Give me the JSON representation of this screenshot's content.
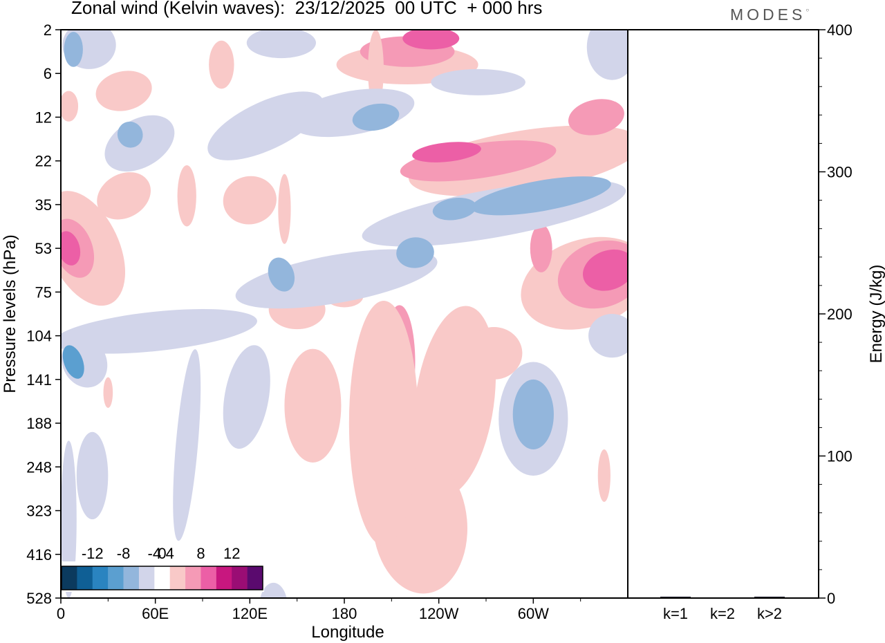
{
  "header": {
    "title": "Zonal wind (Kelvin waves):  23/12/2025  00 UTC  + 000 hrs",
    "brand": "MODES"
  },
  "chart_data": [
    {
      "type": "heatmap",
      "title": "Zonal wind (Kelvin waves):  23/12/2025  00 UTC  + 000 hrs",
      "xlabel": "Longitude",
      "ylabel": "Pressure levels (hPa)",
      "x_ticks": [
        "0",
        "60E",
        "120E",
        "180",
        "120W",
        "60W"
      ],
      "x_tick_values": [
        0,
        60,
        120,
        180,
        240,
        300
      ],
      "xlim": [
        0,
        360
      ],
      "y_ticks": [
        "2",
        "6",
        "12",
        "22",
        "35",
        "53",
        "75",
        "104",
        "141",
        "188",
        "248",
        "323",
        "416",
        "528"
      ],
      "y_scale": "level-index (inverted, 2 hPa at top)",
      "colorbar": {
        "tick_labels": [
          "-12",
          "-8",
          "-4",
          "0",
          "4",
          "8",
          "12"
        ],
        "levels": [
          -14,
          -12,
          -10,
          -8,
          -6,
          -4,
          -2,
          2,
          4,
          6,
          8,
          10,
          12,
          14
        ],
        "colors": [
          "#0b3a5e",
          "#0f5f95",
          "#2a84c0",
          "#5b9fd0",
          "#93b6dc",
          "#d2d5ea",
          "#ffffff",
          "#f9c9c8",
          "#f59ab6",
          "#ec5fa6",
          "#c8177f",
          "#9a0d74",
          "#5a0a6e"
        ]
      },
      "regions": [
        {
          "cat": "pos",
          "level": 1,
          "x": 102,
          "y": 0.8,
          "rx": 8,
          "ry": 0.55,
          "rot": 0
        },
        {
          "cat": "pos",
          "level": 1,
          "x": 40,
          "y": 1.4,
          "rx": 18,
          "ry": 0.45,
          "rot": -12
        },
        {
          "cat": "pos",
          "level": 1,
          "x": 5,
          "y": 1.75,
          "rx": 6,
          "ry": 0.35,
          "rot": 0
        },
        {
          "cat": "pos",
          "level": 1,
          "x": 40,
          "y": 3.8,
          "rx": 18,
          "ry": 0.5,
          "rot": -30
        },
        {
          "cat": "pos",
          "level": 1,
          "x": 80,
          "y": 3.8,
          "rx": 6,
          "ry": 0.7,
          "rot": 0
        },
        {
          "cat": "pos",
          "level": 1,
          "x": 120,
          "y": 3.9,
          "rx": 17,
          "ry": 0.55,
          "rot": -10
        },
        {
          "cat": "pos",
          "level": 1,
          "x": 142,
          "y": 4.1,
          "rx": 4,
          "ry": 0.8,
          "rot": 0
        },
        {
          "cat": "pos",
          "level": 1,
          "x": 15,
          "y": 5.0,
          "rx": 22,
          "ry": 1.4,
          "rot": -25
        },
        {
          "cat": "pos",
          "level": 2,
          "x": 8,
          "y": 5.0,
          "rx": 12,
          "ry": 0.7,
          "rot": -20
        },
        {
          "cat": "pos",
          "level": 3,
          "x": 5,
          "y": 5.0,
          "rx": 7,
          "ry": 0.4,
          "rot": -15
        },
        {
          "cat": "pos",
          "level": 1,
          "x": 220,
          "y": 0.8,
          "rx": 45,
          "ry": 0.45,
          "rot": 0
        },
        {
          "cat": "pos",
          "level": 2,
          "x": 220,
          "y": 0.5,
          "rx": 30,
          "ry": 0.35,
          "rot": 0
        },
        {
          "cat": "pos",
          "level": 3,
          "x": 235,
          "y": 0.2,
          "rx": 18,
          "ry": 0.25,
          "rot": 0
        },
        {
          "cat": "pos",
          "level": 1,
          "x": 200,
          "y": 0.9,
          "rx": 5,
          "ry": 0.9,
          "rot": 0
        },
        {
          "cat": "pos",
          "level": 1,
          "x": 295,
          "y": 3.0,
          "rx": 75,
          "ry": 0.7,
          "rot": -9
        },
        {
          "cat": "pos",
          "level": 2,
          "x": 265,
          "y": 3.0,
          "rx": 50,
          "ry": 0.4,
          "rot": -8
        },
        {
          "cat": "pos",
          "level": 3,
          "x": 245,
          "y": 2.8,
          "rx": 22,
          "ry": 0.22,
          "rot": -6
        },
        {
          "cat": "pos",
          "level": 2,
          "x": 340,
          "y": 2.0,
          "rx": 18,
          "ry": 0.4,
          "rot": -12
        },
        {
          "cat": "pos",
          "level": 1,
          "x": 333,
          "y": 5.8,
          "rx": 42,
          "ry": 1.0,
          "rot": -18
        },
        {
          "cat": "pos",
          "level": 2,
          "x": 343,
          "y": 5.6,
          "rx": 28,
          "ry": 0.75,
          "rot": -18
        },
        {
          "cat": "pos",
          "level": 3,
          "x": 348,
          "y": 5.5,
          "rx": 17,
          "ry": 0.45,
          "rot": -20
        },
        {
          "cat": "pos",
          "level": 2,
          "x": 305,
          "y": 5.0,
          "rx": 7,
          "ry": 0.55,
          "rot": 0
        },
        {
          "cat": "pos",
          "level": 1,
          "x": 250,
          "y": 8.5,
          "rx": 25,
          "ry": 2.2,
          "rot": 8
        },
        {
          "cat": "pos",
          "level": 2,
          "x": 215,
          "y": 7.6,
          "rx": 10,
          "ry": 1.3,
          "rot": 0
        },
        {
          "cat": "pos",
          "level": 1,
          "x": 228,
          "y": 11.3,
          "rx": 30,
          "ry": 1.6,
          "rot": -5
        },
        {
          "cat": "pos",
          "level": 1,
          "x": 205,
          "y": 9.0,
          "rx": 22,
          "ry": 2.8,
          "rot": 0
        },
        {
          "cat": "pos",
          "level": 1,
          "x": 160,
          "y": 8.6,
          "rx": 18,
          "ry": 1.3,
          "rot": 0
        },
        {
          "cat": "pos",
          "level": 1,
          "x": 150,
          "y": 6.4,
          "rx": 18,
          "ry": 0.45,
          "rot": 0
        },
        {
          "cat": "pos",
          "level": 1,
          "x": 180,
          "y": 6.1,
          "rx": 12,
          "ry": 0.25,
          "rot": 0
        },
        {
          "cat": "pos",
          "level": 1,
          "x": 275,
          "y": 7.4,
          "rx": 18,
          "ry": 0.6,
          "rot": 0
        },
        {
          "cat": "pos",
          "level": 1,
          "x": 30,
          "y": 8.3,
          "rx": 3,
          "ry": 0.35,
          "rot": 0
        },
        {
          "cat": "pos",
          "level": 1,
          "x": 345,
          "y": 10.2,
          "rx": 4,
          "ry": 0.6,
          "rot": 0
        },
        {
          "cat": "neg",
          "level": 1,
          "x": 350,
          "y": 0.4,
          "rx": 16,
          "ry": 0.75,
          "rot": 0
        },
        {
          "cat": "neg",
          "level": 1,
          "x": 18,
          "y": 0.35,
          "rx": 17,
          "ry": 0.55,
          "rot": 0
        },
        {
          "cat": "neg",
          "level": 2,
          "x": 8,
          "y": 0.45,
          "rx": 6,
          "ry": 0.4,
          "rot": 0
        },
        {
          "cat": "neg",
          "level": 1,
          "x": 140,
          "y": 0.3,
          "rx": 22,
          "ry": 0.35,
          "rot": 0
        },
        {
          "cat": "neg",
          "level": 1,
          "x": 265,
          "y": 1.2,
          "rx": 30,
          "ry": 0.3,
          "rot": 0
        },
        {
          "cat": "neg",
          "level": 1,
          "x": 130,
          "y": 2.2,
          "rx": 40,
          "ry": 0.55,
          "rot": -25
        },
        {
          "cat": "neg",
          "level": 1,
          "x": 50,
          "y": 2.6,
          "rx": 24,
          "ry": 0.55,
          "rot": -30
        },
        {
          "cat": "neg",
          "level": 2,
          "x": 44,
          "y": 2.4,
          "rx": 8,
          "ry": 0.3,
          "rot": -25
        },
        {
          "cat": "neg",
          "level": 1,
          "x": 185,
          "y": 1.9,
          "rx": 40,
          "ry": 0.5,
          "rot": -10
        },
        {
          "cat": "neg",
          "level": 2,
          "x": 200,
          "y": 2.0,
          "rx": 15,
          "ry": 0.3,
          "rot": -10
        },
        {
          "cat": "neg",
          "level": 1,
          "x": 275,
          "y": 4.2,
          "rx": 85,
          "ry": 0.55,
          "rot": -10
        },
        {
          "cat": "neg",
          "level": 2,
          "x": 305,
          "y": 3.8,
          "rx": 45,
          "ry": 0.35,
          "rot": -10
        },
        {
          "cat": "neg",
          "level": 2,
          "x": 250,
          "y": 4.1,
          "rx": 14,
          "ry": 0.25,
          "rot": -8
        },
        {
          "cat": "neg",
          "level": 1,
          "x": 175,
          "y": 5.7,
          "rx": 65,
          "ry": 0.55,
          "rot": -10
        },
        {
          "cat": "neg",
          "level": 2,
          "x": 225,
          "y": 5.1,
          "rx": 12,
          "ry": 0.35,
          "rot": -5
        },
        {
          "cat": "neg",
          "level": 2,
          "x": 140,
          "y": 5.6,
          "rx": 8,
          "ry": 0.4,
          "rot": -20
        },
        {
          "cat": "neg",
          "level": 1,
          "x": 60,
          "y": 6.9,
          "rx": 65,
          "ry": 0.45,
          "rot": -6
        },
        {
          "cat": "neg",
          "level": 1,
          "x": 15,
          "y": 7.6,
          "rx": 14,
          "ry": 0.6,
          "rot": -25
        },
        {
          "cat": "neg",
          "level": 3,
          "x": 8,
          "y": 7.6,
          "rx": 6,
          "ry": 0.4,
          "rot": -20
        },
        {
          "cat": "neg",
          "level": 1,
          "x": 118,
          "y": 8.4,
          "rx": 14,
          "ry": 1.2,
          "rot": 10
        },
        {
          "cat": "neg",
          "level": 1,
          "x": 80,
          "y": 9.5,
          "rx": 7,
          "ry": 2.2,
          "rot": 5
        },
        {
          "cat": "neg",
          "level": 1,
          "x": 20,
          "y": 10.2,
          "rx": 10,
          "ry": 1.0,
          "rot": 0
        },
        {
          "cat": "neg",
          "level": 1,
          "x": 5,
          "y": 11.2,
          "rx": 5,
          "ry": 1.8,
          "rot": 0
        },
        {
          "cat": "neg",
          "level": 1,
          "x": 300,
          "y": 8.9,
          "rx": 22,
          "ry": 1.3,
          "rot": 0
        },
        {
          "cat": "neg",
          "level": 2,
          "x": 300,
          "y": 8.8,
          "rx": 13,
          "ry": 0.8,
          "rot": 0
        },
        {
          "cat": "neg",
          "level": 1,
          "x": 350,
          "y": 7.0,
          "rx": 15,
          "ry": 0.5,
          "rot": 0
        },
        {
          "cat": "neg",
          "level": 1,
          "x": 135,
          "y": 13.2,
          "rx": 9,
          "ry": 0.55,
          "rot": 0
        }
      ]
    },
    {
      "type": "bar",
      "ylabel": "Energy (J/kg)",
      "categories": [
        "k=1",
        "k=2",
        "k>2"
      ],
      "values": [
        1,
        0,
        1
      ],
      "ylim": [
        0,
        400
      ],
      "y_ticks": [
        "0",
        "100",
        "200",
        "300",
        "400"
      ]
    }
  ]
}
